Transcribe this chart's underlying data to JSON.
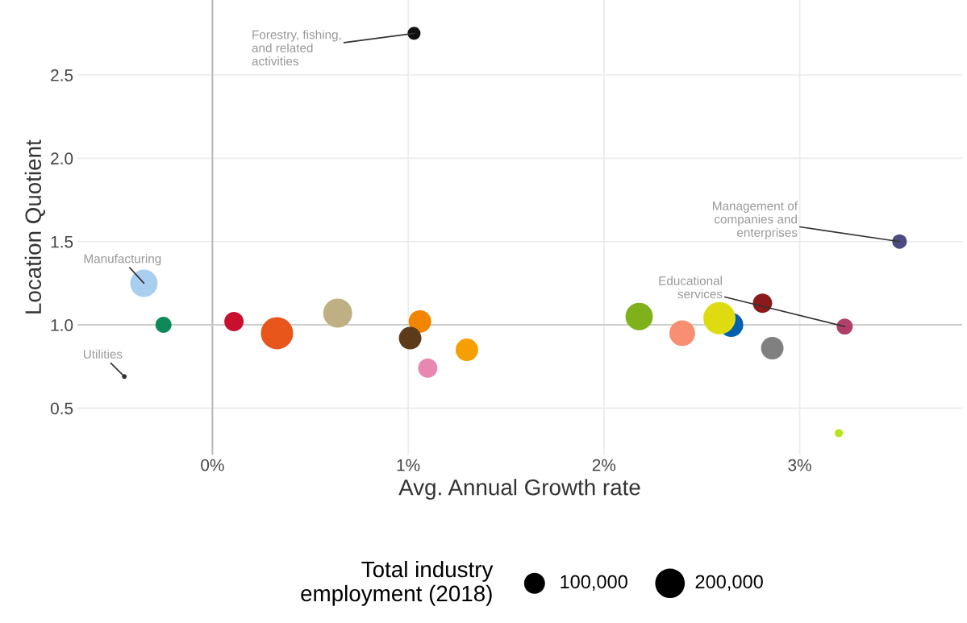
{
  "chart_data": {
    "type": "bubble",
    "xlabel": "Avg. Annual Growth rate",
    "ylabel": "Location Quotient",
    "legend_title": "Total industry\nemployment (2018)",
    "x": [
      1.03,
      3.51,
      3.23,
      -0.35,
      -0.45,
      -0.25,
      0.11,
      0.33,
      0.64,
      1.06,
      1.01,
      1.1,
      1.3,
      2.18,
      2.4,
      2.65,
      2.59,
      2.81,
      2.86,
      3.2
    ],
    "values": [
      2.75,
      1.5,
      0.99,
      1.25,
      0.69,
      1.0,
      1.02,
      0.95,
      1.07,
      1.02,
      0.92,
      0.74,
      0.85,
      1.05,
      0.95,
      1.0,
      1.04,
      1.13,
      0.86,
      0.35
    ],
    "sizes": [
      38000,
      48000,
      59000,
      171000,
      5000,
      59000,
      85000,
      237000,
      192000,
      116000,
      116000,
      85000,
      116000,
      171000,
      151000,
      133000,
      237000,
      85000,
      116000,
      15000
    ],
    "colors": [
      "#111111",
      "#4b4b7f",
      "#b0406a",
      "#a8cff0",
      "#333333",
      "#0e8a5a",
      "#c8102e",
      "#e8561c",
      "#bfb084",
      "#f28500",
      "#5c3a1a",
      "#e887b0",
      "#f5a000",
      "#7fb21a",
      "#f88f72",
      "#0060b0",
      "#dedc10",
      "#8b1a1a",
      "#808080",
      "#b5e61d"
    ],
    "size_legend": [
      {
        "value": 100000,
        "label": "100,000"
      },
      {
        "value": 200000,
        "label": "200,000"
      }
    ],
    "annotations": [
      {
        "text": "Forestry, fishing,\nand related\nactivities",
        "x": 1.03,
        "y": 2.75
      },
      {
        "text": "Management of\ncompanies and\nenterprises",
        "x": 3.51,
        "y": 1.5
      },
      {
        "text": "Educational\nservices",
        "x": 3.23,
        "y": 0.99
      },
      {
        "text": "Manufacturing",
        "x": -0.35,
        "y": 1.25
      },
      {
        "text": "Utilities",
        "x": -0.45,
        "y": 0.69
      }
    ],
    "ref_lines": [
      {
        "axis": "x",
        "value": 0,
        "color": "#bbbbbb"
      },
      {
        "axis": "y",
        "value": 1,
        "color": "#cccccc"
      }
    ],
    "xlim": [
      -0.69,
      3.83
    ],
    "ylim": [
      0.22,
      2.95
    ],
    "xticks": [
      {
        "value": 0,
        "label": "0%"
      },
      {
        "value": 1,
        "label": "1%"
      },
      {
        "value": 2,
        "label": "2%"
      },
      {
        "value": 3,
        "label": "3%"
      }
    ],
    "yticks": [
      {
        "value": 0.5,
        "label": "0.5"
      },
      {
        "value": 1,
        "label": "1.0"
      },
      {
        "value": 1.5,
        "label": "1.5"
      },
      {
        "value": 2,
        "label": "2.0"
      },
      {
        "value": 2.5,
        "label": "2.5"
      }
    ],
    "grid": true
  }
}
